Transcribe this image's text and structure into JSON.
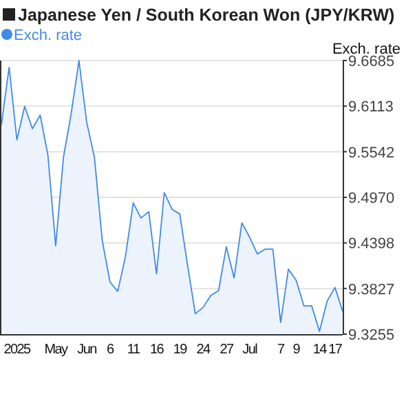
{
  "chart_data": {
    "type": "area",
    "title": "Japanese Yen / South Korean Won (JPY/KRW)",
    "ylabel": "Exch. rate",
    "categories": [
      null,
      null,
      "2025",
      null,
      null,
      null,
      null,
      "May",
      null,
      null,
      null,
      "Jun",
      null,
      null,
      "6",
      null,
      null,
      "11",
      null,
      null,
      "16",
      null,
      null,
      "19",
      null,
      null,
      "24",
      null,
      null,
      "27",
      null,
      null,
      "Jul",
      null,
      null,
      null,
      "7",
      null,
      "9",
      null,
      null,
      "14",
      null,
      "17",
      null
    ],
    "series": [
      {
        "name": "Exch. rate",
        "color": "#3f8ae6",
        "values": [
          9.588,
          9.66,
          9.569,
          9.611,
          9.583,
          9.6,
          9.55,
          9.436,
          9.547,
          9.602,
          9.6685,
          9.591,
          9.547,
          9.443,
          9.391,
          9.379,
          9.423,
          9.49,
          9.471,
          9.479,
          9.401,
          9.503,
          9.482,
          9.476,
          9.412,
          9.351,
          9.359,
          9.374,
          9.38,
          9.435,
          9.396,
          9.465,
          9.447,
          9.426,
          9.432,
          9.432,
          9.34,
          9.407,
          9.393,
          9.361,
          9.361,
          9.329,
          9.367,
          9.384,
          9.354
        ]
      }
    ],
    "ylim": [
      9.3255,
      9.6685
    ],
    "yticks": [
      9.3255,
      9.3827,
      9.4398,
      {
        "value": 9.497,
        "label": "9.4970"
      },
      9.5542,
      9.6113,
      9.6685
    ],
    "grid": "y",
    "legend": "top left"
  }
}
